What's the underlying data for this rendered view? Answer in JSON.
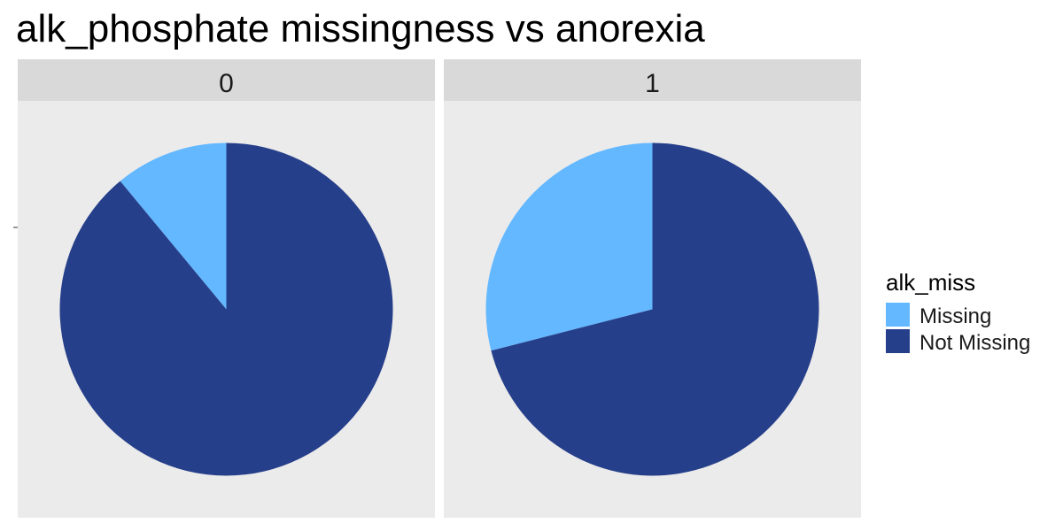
{
  "chart_data": {
    "type": "pie",
    "title": "alk_phosphate missingness vs anorexia",
    "facets": [
      {
        "label": "0",
        "slices": [
          {
            "category": "Missing",
            "value": 0.11
          },
          {
            "category": "Not Missing",
            "value": 0.89
          }
        ]
      },
      {
        "label": "1",
        "slices": [
          {
            "category": "Missing",
            "value": 0.29
          },
          {
            "category": "Not Missing",
            "value": 0.71
          }
        ]
      }
    ],
    "legend": {
      "title": "alk_miss",
      "placement": "right",
      "items": [
        {
          "label": "Missing",
          "color": "#64B8FF"
        },
        {
          "label": "Not Missing",
          "color": "#263F8A"
        }
      ]
    }
  },
  "colors": {
    "panel_background": "#EBEBEB",
    "strip_background": "#D9D9D9",
    "text": "#1A1A1A",
    "missing": "#64B8FF",
    "not_missing": "#263F8A"
  }
}
